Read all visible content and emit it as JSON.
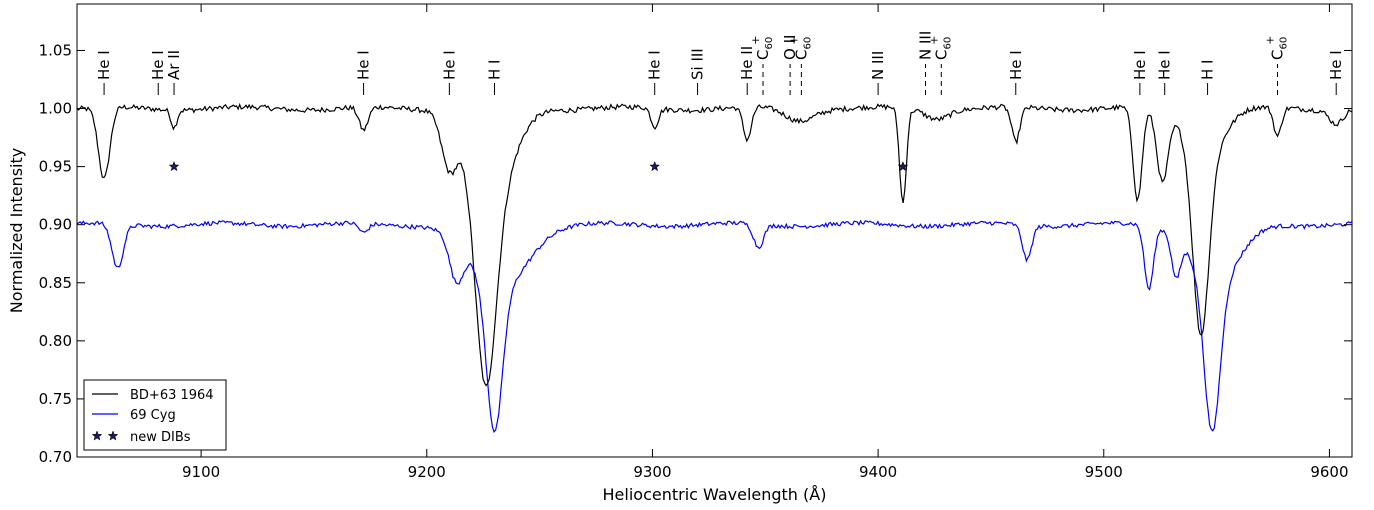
{
  "chart_data": {
    "type": "line",
    "xlabel": "Heliocentric Wavelength (Å)",
    "ylabel": "Normalized Intensity",
    "xlim": [
      9045,
      9610
    ],
    "ylim": [
      0.7,
      1.09
    ],
    "x_ticks": [
      {
        "value": 9100,
        "label": "9100"
      },
      {
        "value": 9200,
        "label": "9200"
      },
      {
        "value": 9300,
        "label": "9300"
      },
      {
        "value": 9400,
        "label": "9400"
      },
      {
        "value": 9500,
        "label": "9500"
      },
      {
        "value": 9600,
        "label": "9600"
      }
    ],
    "y_ticks": [
      {
        "value": 0.7,
        "label": "0.70"
      },
      {
        "value": 0.75,
        "label": "0.75"
      },
      {
        "value": 0.8,
        "label": "0.80"
      },
      {
        "value": 0.85,
        "label": "0.85"
      },
      {
        "value": 0.9,
        "label": "0.90"
      },
      {
        "value": 0.95,
        "label": "0.95"
      },
      {
        "value": 1.0,
        "label": "1.00"
      },
      {
        "value": 1.05,
        "label": "1.05"
      }
    ],
    "grid": false,
    "legend_position": "lower-left",
    "series": [
      {
        "name": "BD+63 1964",
        "color": "#000000",
        "continuum": 1.0,
        "noise": 0.0022,
        "lines": [
          {
            "center": 9057,
            "depth": 0.062,
            "width": 2.5
          },
          {
            "center": 9088,
            "depth": 0.015,
            "width": 1.3
          },
          {
            "center": 9172,
            "depth": 0.02,
            "width": 2.0
          },
          {
            "center": 9210,
            "depth": 0.045,
            "width": 3.5
          },
          {
            "center": 9226,
            "depth": 0.165,
            "width": 4.5
          },
          {
            "center": 9229,
            "depth": 0.08,
            "width": 9.0
          },
          {
            "center": 9301,
            "depth": 0.016,
            "width": 1.6
          },
          {
            "center": 9342,
            "depth": 0.028,
            "width": 1.8
          },
          {
            "center": 9365,
            "depth": 0.01,
            "width": 6.0
          },
          {
            "center": 9411,
            "depth": 0.082,
            "width": 1.5
          },
          {
            "center": 9426,
            "depth": 0.008,
            "width": 5.0
          },
          {
            "center": 9461,
            "depth": 0.03,
            "width": 1.8
          },
          {
            "center": 9515,
            "depth": 0.08,
            "width": 2.0
          },
          {
            "center": 9526,
            "depth": 0.062,
            "width": 2.5
          },
          {
            "center": 9543,
            "depth": 0.155,
            "width": 3.5
          },
          {
            "center": 9545,
            "depth": 0.04,
            "width": 8.0
          },
          {
            "center": 9577,
            "depth": 0.025,
            "width": 1.7
          },
          {
            "center": 9603,
            "depth": 0.012,
            "width": 3.0
          }
        ]
      },
      {
        "name": "69 Cyg",
        "color": "#0000ff",
        "continuum": 0.9,
        "noise": 0.0018,
        "lines": [
          {
            "center": 9063,
            "depth": 0.038,
            "width": 2.5
          },
          {
            "center": 9172,
            "depth": 0.008,
            "width": 2.0
          },
          {
            "center": 9213,
            "depth": 0.035,
            "width": 3.0
          },
          {
            "center": 9230,
            "depth": 0.125,
            "width": 3.5
          },
          {
            "center": 9232,
            "depth": 0.055,
            "width": 12.0
          },
          {
            "center": 9347,
            "depth": 0.02,
            "width": 2.2
          },
          {
            "center": 9466,
            "depth": 0.03,
            "width": 2.0
          },
          {
            "center": 9520,
            "depth": 0.055,
            "width": 2.0
          },
          {
            "center": 9532,
            "depth": 0.035,
            "width": 2.0
          },
          {
            "center": 9548,
            "depth": 0.13,
            "width": 3.5
          },
          {
            "center": 9550,
            "depth": 0.05,
            "width": 10.0
          }
        ]
      }
    ],
    "dibs": {
      "name": "new DIBs",
      "color": "#1a1a60",
      "points": [
        {
          "x": 9088,
          "y": 0.95
        },
        {
          "x": 9301,
          "y": 0.95
        },
        {
          "x": 9411,
          "y": 0.95
        }
      ]
    },
    "line_ids": [
      {
        "x": 9057,
        "label": "He I",
        "dashed": false
      },
      {
        "x": 9081,
        "label": "He I",
        "dashed": false
      },
      {
        "x": 9088,
        "label": "Ar II",
        "dashed": false
      },
      {
        "x": 9172,
        "label": "He I",
        "dashed": false
      },
      {
        "x": 9210,
        "label": "He I",
        "dashed": false
      },
      {
        "x": 9230,
        "label": "H I",
        "dashed": false
      },
      {
        "x": 9301,
        "label": "He I",
        "dashed": false
      },
      {
        "x": 9320,
        "label": "Si III",
        "dashed": false
      },
      {
        "x": 9342,
        "label": "He II",
        "dashed": false
      },
      {
        "x": 9349,
        "label": "C",
        "sub": "60",
        "sup": "+",
        "dashed": true
      },
      {
        "x": 9361,
        "label": "O II",
        "dashed": true
      },
      {
        "x": 9366,
        "label": "C",
        "sub": "60",
        "sup": "+",
        "dashed": true
      },
      {
        "x": 9400,
        "label": "N III",
        "dashed": false
      },
      {
        "x": 9421,
        "label": "N III",
        "dashed": true
      },
      {
        "x": 9428,
        "label": "C",
        "sub": "60",
        "sup": "+",
        "dashed": true
      },
      {
        "x": 9461,
        "label": "He I",
        "dashed": false
      },
      {
        "x": 9516,
        "label": "He I",
        "dashed": false
      },
      {
        "x": 9527,
        "label": "He I",
        "dashed": false
      },
      {
        "x": 9546,
        "label": "H I",
        "dashed": false
      },
      {
        "x": 9577,
        "label": "C",
        "sub": "60",
        "sup": "+",
        "dashed": true
      },
      {
        "x": 9603,
        "label": "He I",
        "dashed": false
      }
    ]
  }
}
